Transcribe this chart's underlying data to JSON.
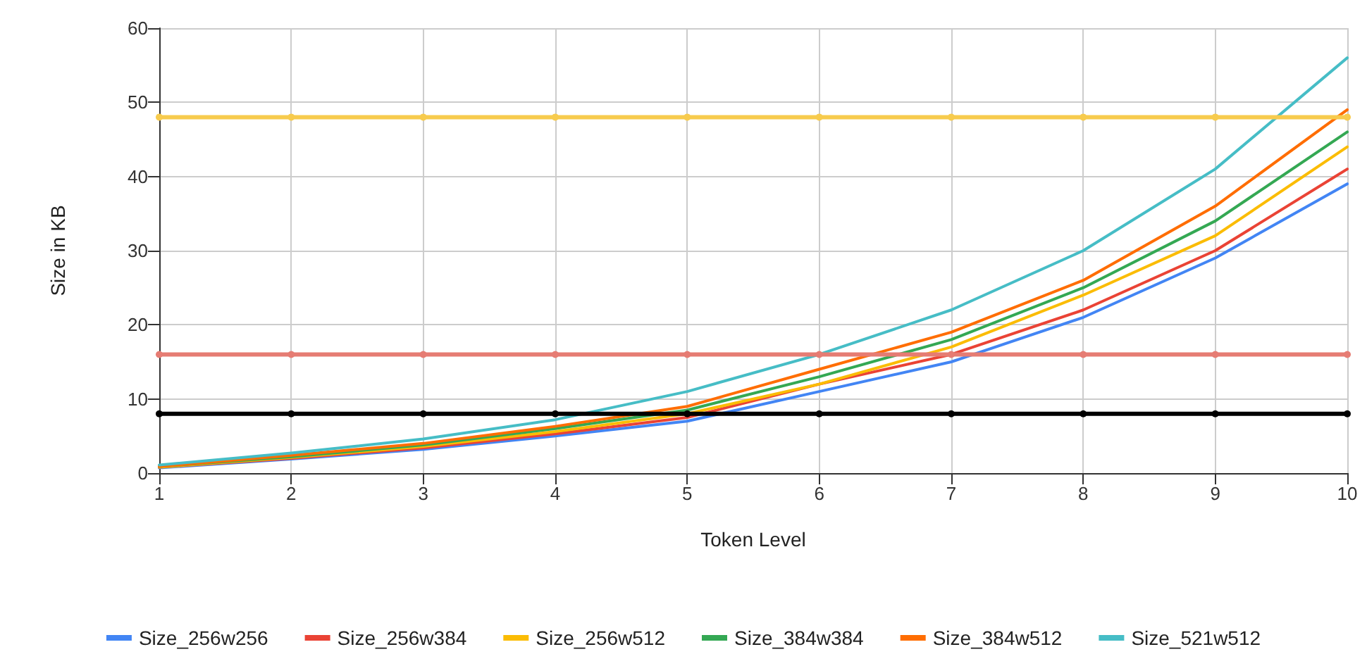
{
  "chart_data": {
    "type": "line",
    "xlabel": "Token Level",
    "ylabel": "Size in KB",
    "x": [
      1,
      2,
      3,
      4,
      5,
      6,
      7,
      8,
      9,
      10
    ],
    "xlim": [
      1,
      10
    ],
    "xticks": [
      1,
      2,
      3,
      4,
      5,
      6,
      7,
      8,
      9,
      10
    ],
    "ylim": [
      0,
      60
    ],
    "yticks": [
      0,
      10,
      20,
      30,
      40,
      50,
      60
    ],
    "grid": true,
    "legend": "bottom",
    "marker": "none",
    "line_style": "solid",
    "series": [
      {
        "name": "Size_256w256",
        "color": "#4285f4",
        "values": [
          0.7,
          1.9,
          3.2,
          5,
          7,
          11,
          15,
          21,
          29,
          39
        ]
      },
      {
        "name": "Size_256w384",
        "color": "#ea4335",
        "values": [
          0.8,
          2,
          3.4,
          5.3,
          7.5,
          12,
          16,
          22,
          30,
          41
        ]
      },
      {
        "name": "Size_256w512",
        "color": "#fbbc04",
        "values": [
          0.8,
          2.1,
          3.6,
          5.6,
          8,
          12,
          17,
          24,
          32,
          44
        ]
      },
      {
        "name": "Size_384w384",
        "color": "#34a853",
        "values": [
          0.9,
          2.2,
          3.8,
          6,
          8.5,
          13,
          18,
          25,
          34,
          46
        ]
      },
      {
        "name": "Size_384w512",
        "color": "#ff6d01",
        "values": [
          0.9,
          2.4,
          4,
          6.3,
          9,
          14,
          19,
          26,
          36,
          49
        ]
      },
      {
        "name": "Size_521w512",
        "color": "#46bdc6",
        "values": [
          1.1,
          2.7,
          4.6,
          7.2,
          11,
          16,
          22,
          30,
          41,
          56
        ]
      },
      {
        "color": "#000000",
        "marker": "circle",
        "values": [
          8,
          8,
          8,
          8,
          8,
          8,
          8,
          8,
          8,
          8
        ]
      },
      {
        "color": "#e67c73",
        "marker": "circle",
        "values": [
          16,
          16,
          16,
          16,
          16,
          16,
          16,
          16,
          16,
          16
        ]
      },
      {
        "color": "#f7cb4d",
        "marker": "circle",
        "values": [
          48,
          48,
          48,
          48,
          48,
          48,
          48,
          48,
          48,
          48
        ]
      }
    ]
  }
}
